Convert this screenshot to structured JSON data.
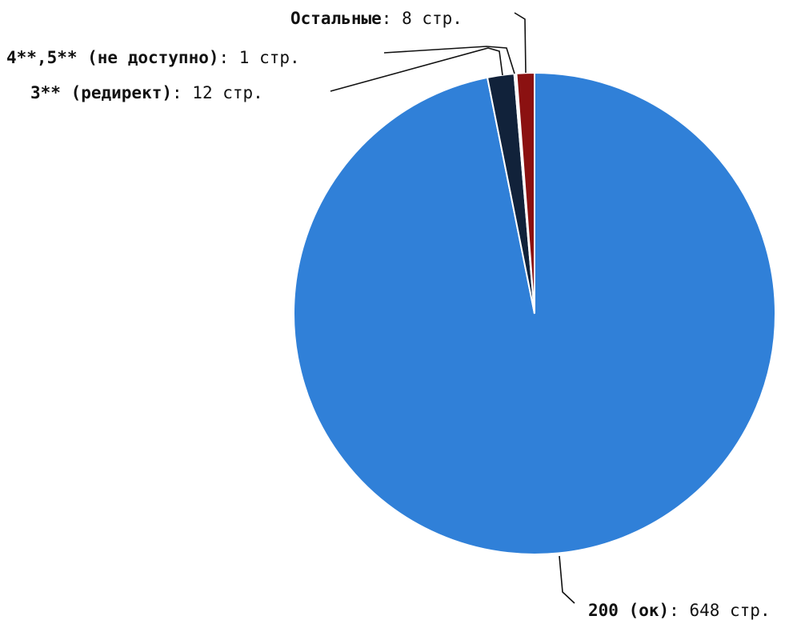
{
  "chart_data": {
    "type": "pie",
    "unit": "стр.",
    "slices": [
      {
        "name": "200 (ок)",
        "value": 648,
        "color": "#3080d8"
      },
      {
        "name": "3** (редирект)",
        "value": 12,
        "color": "#11223a"
      },
      {
        "name": "4**,5** (не доступно)",
        "value": 1,
        "color": "#f0f0f0"
      },
      {
        "name": "Остальные",
        "value": 8,
        "color": "#8b1111"
      }
    ]
  }
}
